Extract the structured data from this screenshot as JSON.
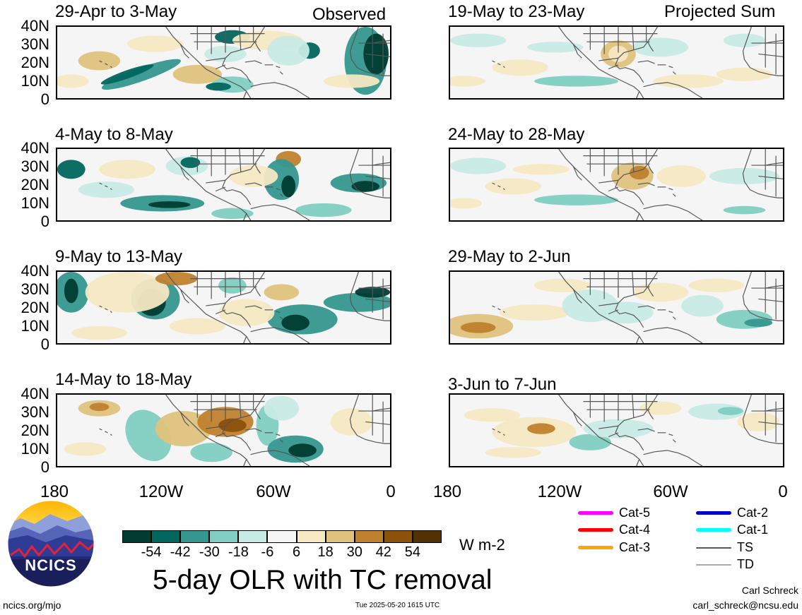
{
  "left_column_label": "Observed",
  "right_column_label": "Projected Sum",
  "panels": [
    {
      "title": "29-Apr to 3-May"
    },
    {
      "title": "4-May to 8-May"
    },
    {
      "title": "9-May to 13-May"
    },
    {
      "title": "14-May to 18-May"
    },
    {
      "title": "19-May to 23-May"
    },
    {
      "title": "24-May to 28-May"
    },
    {
      "title": "29-May to 2-Jun"
    },
    {
      "title": "3-Jun to 7-Jun"
    }
  ],
  "lat_labels": [
    "40N",
    "30N",
    "20N",
    "10N",
    "0"
  ],
  "lon_labels": [
    "180",
    "120W",
    "60W",
    "0"
  ],
  "colorbar": {
    "ticks": [
      "-54",
      "-42",
      "-30",
      "-18",
      "-6",
      "6",
      "18",
      "30",
      "42",
      "54"
    ],
    "units": "W m-2",
    "colors": [
      "#003c30",
      "#01665e",
      "#35978f",
      "#80cdc1",
      "#c7eae5",
      "#f5f5f5",
      "#f6e8c3",
      "#dfc27d",
      "#bf812d",
      "#8c510a",
      "#543005"
    ]
  },
  "main_title": "5-day OLR with TC removal",
  "logo": {
    "text": "NCICS"
  },
  "footer": {
    "url": "ncics.org/mjo",
    "timestamp": "Tue 2025-05-20 1615 UTC",
    "author": "Carl Schreck",
    "email": "carl_schreck@ncsu.edu"
  },
  "legend": [
    {
      "label": "Cat-5",
      "color": "#ff00ff"
    },
    {
      "label": "Cat-4",
      "color": "#ff0000"
    },
    {
      "label": "Cat-3",
      "color": "#ffa500"
    },
    {
      "label": "Cat-2",
      "color": "#0000cd"
    },
    {
      "label": "Cat-1",
      "color": "#00ffff"
    },
    {
      "label": "TS",
      "color": "#555555"
    },
    {
      "label": "TD",
      "color": "#aaaaaa"
    }
  ]
}
